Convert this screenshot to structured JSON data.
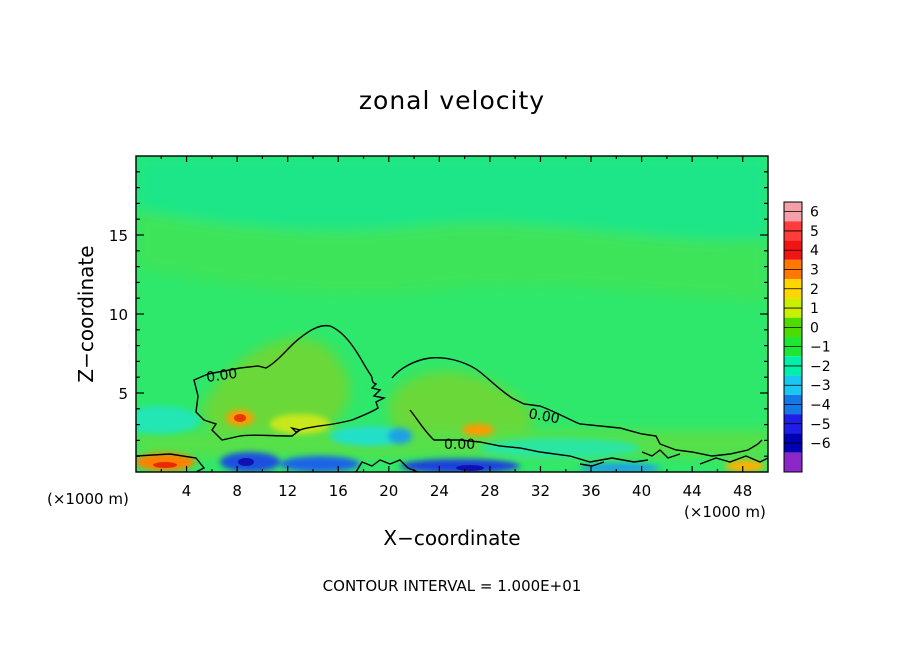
{
  "chart_data": {
    "type": "heatmap",
    "title": "zonal velocity",
    "xlabel": "X−coordinate",
    "ylabel": "Z−coordinate",
    "x_unit": "(×1000 m)",
    "xlim": [
      0,
      50
    ],
    "ylim": [
      0,
      20
    ],
    "x_ticks": [
      4,
      8,
      12,
      16,
      20,
      24,
      28,
      32,
      36,
      40,
      44,
      48
    ],
    "y_ticks": [
      5,
      10,
      15
    ],
    "colorbar": {
      "levels": [
        6,
        5,
        4,
        3,
        2,
        1,
        0,
        -1,
        -2,
        -3,
        -4,
        -5,
        -6
      ],
      "labels": [
        "6",
        "5",
        "4",
        "3",
        "2",
        "1",
        "0",
        "−1",
        "−2",
        "−3",
        "−4",
        "−5",
        "−6"
      ],
      "colors": [
        "#f4a0a8",
        "#ff3c3c",
        "#f01414",
        "#ff7800",
        "#ffd700",
        "#c8f000",
        "#4cdc00",
        "#1ee632",
        "#00f0aa",
        "#18c8f0",
        "#1478e6",
        "#1e1ee6",
        "#0000b4",
        "#8c28c8"
      ]
    },
    "contour_labels": [
      "0.00",
      "0.00",
      "0.00"
    ],
    "footer": "CONTOUR INTERVAL = 1.000E+01"
  }
}
